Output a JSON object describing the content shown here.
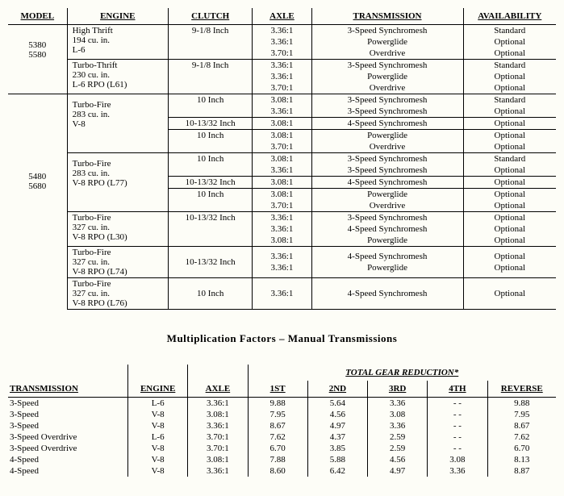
{
  "table1": {
    "headers": {
      "model": "MODEL",
      "engine": "ENGINE",
      "clutch": "CLUTCH",
      "axle": "AXLE",
      "transmission": "TRANSMISSION",
      "availability": "AVAILABILITY"
    },
    "models": {
      "a": "5380",
      "b": "5580",
      "c": "5480",
      "d": "5680"
    },
    "engines": {
      "e1l1": "High Thrift",
      "e1l2": "194 cu. in.",
      "e1l3": "L-6",
      "e2l1": "Turbo-Thrift",
      "e2l2": "230 cu. in.",
      "e2l3": "L-6 RPO (L61)",
      "e3l1": "Turbo-Fire",
      "e3l2": "283 cu. in.",
      "e3l3": "V-8",
      "e4l1": "Turbo-Fire",
      "e4l2": "283 cu. in.",
      "e4l3": "V-8 RPO (L77)",
      "e5l1": "Turbo-Fire",
      "e5l2": "327 cu. in.",
      "e5l3": "V-8 RPO (L30)",
      "e6l1": "Turbo-Fire",
      "e6l2": "327 cu. in.",
      "e6l3": "V-8 RPO (L74)",
      "e7l1": "Turbo-Fire",
      "e7l2": "327 cu. in.",
      "e7l3": "V-8 RPO (L76)"
    },
    "clutches": {
      "c918": "9-1/8 Inch",
      "c10": "10 Inch",
      "c101332": "10-13/32 Inch"
    },
    "axles": {
      "a336": "3.36:1",
      "a370": "3.70:1",
      "a308": "3.08:1"
    },
    "trans": {
      "t3s": "3-Speed Synchromesh",
      "tpg": "Powerglide",
      "tod": "Overdrive",
      "t4s": "4-Speed Synchromesh"
    },
    "avail": {
      "std": "Standard",
      "opt": "Optional"
    }
  },
  "midtitle": "Multiplication Factors – Manual Transmissions",
  "table2": {
    "grp": "TOTAL GEAR REDUCTION*",
    "headers": {
      "transmission": "TRANSMISSION",
      "engine": "ENGINE",
      "axle": "AXLE",
      "first": "1ST",
      "second": "2ND",
      "third": "3RD",
      "fourth": "4TH",
      "reverse": "REVERSE"
    },
    "dash": "- -",
    "rows": [
      {
        "tx": "3-Speed",
        "eng": "L-6",
        "ax": "3.36:1",
        "g1": "9.88",
        "g2": "5.64",
        "g3": "3.36",
        "g4": "- -",
        "rv": "9.88"
      },
      {
        "tx": "3-Speed",
        "eng": "V-8",
        "ax": "3.08:1",
        "g1": "7.95",
        "g2": "4.56",
        "g3": "3.08",
        "g4": "- -",
        "rv": "7.95"
      },
      {
        "tx": "3-Speed",
        "eng": "V-8",
        "ax": "3.36:1",
        "g1": "8.67",
        "g2": "4.97",
        "g3": "3.36",
        "g4": "- -",
        "rv": "8.67"
      },
      {
        "tx": "3-Speed Overdrive",
        "eng": "L-6",
        "ax": "3.70:1",
        "g1": "7.62",
        "g2": "4.37",
        "g3": "2.59",
        "g4": "- -",
        "rv": "7.62"
      },
      {
        "tx": "3-Speed Overdrive",
        "eng": "V-8",
        "ax": "3.70:1",
        "g1": "6.70",
        "g2": "3.85",
        "g3": "2.59",
        "g4": "- -",
        "rv": "6.70"
      },
      {
        "tx": "4-Speed",
        "eng": "V-8",
        "ax": "3.08:1",
        "g1": "7.88",
        "g2": "5.88",
        "g3": "4.56",
        "g4": "3.08",
        "rv": "8.13"
      },
      {
        "tx": "4-Speed",
        "eng": "V-8",
        "ax": "3.36:1",
        "g1": "8.60",
        "g2": "6.42",
        "g3": "4.97",
        "g4": "3.36",
        "rv": "8.87"
      }
    ]
  }
}
